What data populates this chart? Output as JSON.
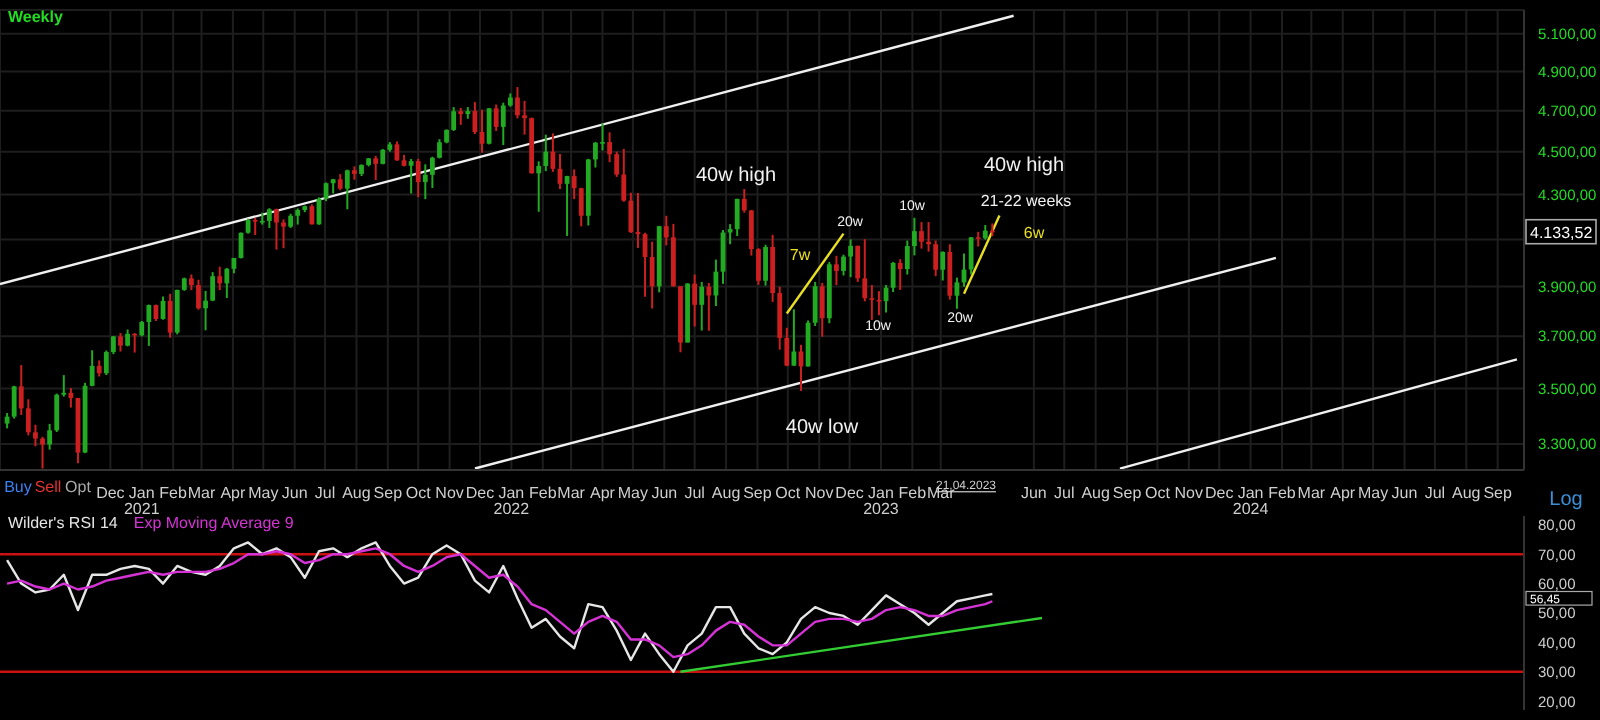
{
  "chart_data": [
    {
      "type": "candlestick",
      "title": "Weekly",
      "log": "y",
      "grid": true,
      "colors": [
        "#22aa22",
        "#22aa22",
        "#cc1f1f",
        "#cc1f1f",
        "#cc1f1f",
        "#cc1f1f",
        "#22aa22",
        "#22aa22",
        "#22aa22",
        "#cc1f1f",
        "#cc1f1f",
        "#22aa22",
        "#22aa22",
        "#cc1f1f",
        "#22aa22",
        "#22aa22",
        "#cc1f1f",
        "#22aa22",
        "#cc1f1f",
        "#22aa22",
        "#22aa22",
        "#cc1f1f",
        "#22aa22",
        "#cc1f1f",
        "#22aa22",
        "#22aa22",
        "#cc1f1f",
        "#cc1f1f",
        "#22aa22",
        "#22aa22",
        "#cc1f1f",
        "#22aa22",
        "#22aa22",
        "#22aa22",
        "#22aa22",
        "#cc1f1f",
        "#22aa22",
        "#22aa22",
        "#cc1f1f",
        "#cc1f1f",
        "#22aa22",
        "#22aa22",
        "#22aa22",
        "#cc1f1f",
        "#22aa22",
        "#22aa22",
        "#22aa22",
        "#cc1f1f",
        "#22aa22",
        "#cc1f1f",
        "#22aa22",
        "#22aa22",
        "#cc1f1f",
        "#22aa22",
        "#22aa22",
        "#cc1f1f",
        "#cc1f1f",
        "#22aa22",
        "#cc1f1f",
        "#22aa22",
        "#22aa22",
        "#22aa22",
        "#22aa22",
        "#22aa22",
        "#cc1f1f",
        "#22aa22",
        "#cc1f1f",
        "#cc1f1f",
        "#22aa22",
        "#cc1f1f",
        "#22aa22",
        "#22aa22",
        "#cc1f1f",
        "#cc1f1f",
        "#cc1f1f",
        "#22aa22",
        "#22aa22",
        "#cc1f1f",
        "#cc1f1f",
        "#22aa22",
        "#cc1f1f",
        "#cc1f1f",
        "#22aa22",
        "#22aa22",
        "#22aa22",
        "#cc1f1f",
        "#cc1f1f",
        "#cc1f1f",
        "#cc1f1f",
        "#cc1f1f",
        "#cc1f1f",
        "#cc1f1f",
        "#22aa22",
        "#cc1f1f",
        "#cc1f1f",
        "#cc1f1f",
        "#22aa22",
        "#cc1f1f",
        "#22aa22",
        "#cc1f1f",
        "#22aa22",
        "#22aa22",
        "#22aa22",
        "#22aa22",
        "#cc1f1f",
        "#cc1f1f",
        "#cc1f1f",
        "#22aa22",
        "#cc1f1f",
        "#cc1f1f",
        "#cc1f1f",
        "#22aa22",
        "#cc1f1f",
        "#22aa22",
        "#22aa22",
        "#cc1f1f",
        "#22aa22",
        "#cc1f1f",
        "#22aa22",
        "#22aa22",
        "#cc1f1f",
        "#cc1f1f",
        "#cc1f1f",
        "#cc1f1f",
        "#22aa22",
        "#22aa22",
        "#cc1f1f",
        "#22aa22",
        "#22aa22",
        "#cc1f1f",
        "#cc1f1f",
        "#cc1f1f",
        "#22aa22",
        "#cc1f1f",
        "#22aa22",
        "#22aa22",
        "#22aa22",
        "#cc1f1f",
        "#22aa22",
        "#cc1f1f"
      ],
      "xlim": [
        "2020-08-14",
        "2024-09-27"
      ],
      "ylim": [
        3210,
        5230
      ],
      "yticks": [
        {
          "value": 3300,
          "label": "3.300,00"
        },
        {
          "value": 3500,
          "label": "3.500,00"
        },
        {
          "value": 3700,
          "label": "3.700,00"
        },
        {
          "value": 3900,
          "label": "3.900,00"
        },
        {
          "value": 4100,
          "label": null
        },
        {
          "value": 4300,
          "label": "4.300,00"
        },
        {
          "value": 4500,
          "label": "4.500,00"
        },
        {
          "value": 4700,
          "label": "4.700,00"
        },
        {
          "value": 4900,
          "label": "4.900,00"
        },
        {
          "value": 5100,
          "label": "5.100,00"
        }
      ],
      "xticks": [
        {
          "value": "2020-12-01",
          "label": "Dec"
        },
        {
          "value": "2021-01-01",
          "label": "Jan\n2021"
        },
        {
          "value": "2021-02-01",
          "label": "Feb"
        },
        {
          "value": "2021-03-01",
          "label": "Mar"
        },
        {
          "value": "2021-04-01",
          "label": "Apr"
        },
        {
          "value": "2021-05-01",
          "label": "May"
        },
        {
          "value": "2021-06-01",
          "label": "Jun"
        },
        {
          "value": "2021-07-01",
          "label": "Jul"
        },
        {
          "value": "2021-08-01",
          "label": "Aug"
        },
        {
          "value": "2021-09-01",
          "label": "Sep"
        },
        {
          "value": "2021-10-01",
          "label": "Oct"
        },
        {
          "value": "2021-11-01",
          "label": "Nov"
        },
        {
          "value": "2021-12-01",
          "label": "Dec"
        },
        {
          "value": "2022-01-01",
          "label": "Jan\n2022"
        },
        {
          "value": "2022-02-01",
          "label": "Feb"
        },
        {
          "value": "2022-03-01",
          "label": "Mar"
        },
        {
          "value": "2022-04-01",
          "label": "Apr"
        },
        {
          "value": "2022-05-01",
          "label": "May"
        },
        {
          "value": "2022-06-01",
          "label": "Jun"
        },
        {
          "value": "2022-07-01",
          "label": "Jul"
        },
        {
          "value": "2022-08-01",
          "label": "Aug"
        },
        {
          "value": "2022-09-01",
          "label": "Sep"
        },
        {
          "value": "2022-10-01",
          "label": "Oct"
        },
        {
          "value": "2022-11-01",
          "label": "Nov"
        },
        {
          "value": "2022-12-01",
          "label": "Dec"
        },
        {
          "value": "2023-01-01",
          "label": "Jan\n2023"
        },
        {
          "value": "2023-02-01",
          "label": "Feb"
        },
        {
          "value": "2023-03-01",
          "label": "Mar"
        },
        {
          "value": "2023-06-01",
          "label": "Jun"
        },
        {
          "value": "2023-07-01",
          "label": "Jul"
        },
        {
          "value": "2023-08-01",
          "label": "Aug"
        },
        {
          "value": "2023-09-01",
          "label": "Sep"
        },
        {
          "value": "2023-10-01",
          "label": "Oct"
        },
        {
          "value": "2023-11-01",
          "label": "Nov"
        },
        {
          "value": "2023-12-01",
          "label": "Dec"
        },
        {
          "value": "2024-01-01",
          "label": "Jan\n2024"
        },
        {
          "value": "2024-02-01",
          "label": "Feb"
        },
        {
          "value": "2024-03-01",
          "label": "Mar"
        },
        {
          "value": "2024-04-01",
          "label": "Apr"
        },
        {
          "value": "2024-05-01",
          "label": "May"
        },
        {
          "value": "2024-06-01",
          "label": "Jun"
        },
        {
          "value": "2024-07-01",
          "label": "Jul"
        },
        {
          "value": "2024-08-01",
          "label": "Aug"
        },
        {
          "value": "2024-09-01",
          "label": "Sep"
        }
      ],
      "x": [
        "2020-08-21",
        "2020-08-28",
        "2020-09-04",
        "2020-09-11",
        "2020-09-18",
        "2020-09-25",
        "2020-10-02",
        "2020-10-09",
        "2020-10-16",
        "2020-10-23",
        "2020-10-30",
        "2020-11-06",
        "2020-11-13",
        "2020-11-20",
        "2020-11-27",
        "2020-12-04",
        "2020-12-11",
        "2020-12-18",
        "2020-12-25",
        "2021-01-01",
        "2021-01-08",
        "2021-01-15",
        "2021-01-22",
        "2021-01-29",
        "2021-02-05",
        "2021-02-12",
        "2021-02-19",
        "2021-02-26",
        "2021-03-05",
        "2021-03-12",
        "2021-03-19",
        "2021-03-26",
        "2021-04-02",
        "2021-04-09",
        "2021-04-16",
        "2021-04-23",
        "2021-04-30",
        "2021-05-07",
        "2021-05-14",
        "2021-05-21",
        "2021-05-28",
        "2021-06-04",
        "2021-06-11",
        "2021-06-18",
        "2021-06-25",
        "2021-07-02",
        "2021-07-09",
        "2021-07-16",
        "2021-07-23",
        "2021-07-30",
        "2021-08-06",
        "2021-08-13",
        "2021-08-20",
        "2021-08-27",
        "2021-09-03",
        "2021-09-10",
        "2021-09-17",
        "2021-09-24",
        "2021-10-01",
        "2021-10-08",
        "2021-10-15",
        "2021-10-22",
        "2021-10-29",
        "2021-11-05",
        "2021-11-12",
        "2021-11-19",
        "2021-11-26",
        "2021-12-03",
        "2021-12-10",
        "2021-12-17",
        "2021-12-24",
        "2021-12-31",
        "2022-01-07",
        "2022-01-14",
        "2022-01-21",
        "2022-01-28",
        "2022-02-04",
        "2022-02-11",
        "2022-02-18",
        "2022-02-25",
        "2022-03-04",
        "2022-03-11",
        "2022-03-18",
        "2022-03-25",
        "2022-04-01",
        "2022-04-08",
        "2022-04-15",
        "2022-04-22",
        "2022-04-29",
        "2022-05-06",
        "2022-05-13",
        "2022-05-20",
        "2022-05-27",
        "2022-06-03",
        "2022-06-10",
        "2022-06-17",
        "2022-06-24",
        "2022-07-01",
        "2022-07-08",
        "2022-07-15",
        "2022-07-22",
        "2022-07-29",
        "2022-08-05",
        "2022-08-12",
        "2022-08-19",
        "2022-08-26",
        "2022-09-02",
        "2022-09-09",
        "2022-09-16",
        "2022-09-23",
        "2022-09-30",
        "2022-10-07",
        "2022-10-14",
        "2022-10-21",
        "2022-10-28",
        "2022-11-04",
        "2022-11-11",
        "2022-11-18",
        "2022-11-25",
        "2022-12-02",
        "2022-12-09",
        "2022-12-16",
        "2022-12-23",
        "2022-12-30",
        "2023-01-06",
        "2023-01-13",
        "2023-01-20",
        "2023-01-27",
        "2023-02-03",
        "2023-02-10",
        "2023-02-17",
        "2023-02-24",
        "2023-03-03",
        "2023-03-10",
        "2023-03-17",
        "2023-03-24",
        "2023-03-31",
        "2023-04-07",
        "2023-04-14",
        "2023-04-21"
      ],
      "ohlc": [
        [
          3372,
          3410,
          3355,
          3397
        ],
        [
          3397,
          3510,
          3390,
          3508
        ],
        [
          3508,
          3588,
          3403,
          3427
        ],
        [
          3427,
          3460,
          3330,
          3341
        ],
        [
          3341,
          3368,
          3292,
          3319
        ],
        [
          3319,
          3325,
          3215,
          3298
        ],
        [
          3298,
          3371,
          3280,
          3348
        ],
        [
          3348,
          3481,
          3342,
          3477
        ],
        [
          3477,
          3550,
          3470,
          3484
        ],
        [
          3484,
          3502,
          3430,
          3465
        ],
        [
          3465,
          3465,
          3233,
          3270
        ],
        [
          3270,
          3521,
          3268,
          3510
        ],
        [
          3510,
          3645,
          3508,
          3585
        ],
        [
          3585,
          3606,
          3545,
          3557
        ],
        [
          3557,
          3644,
          3550,
          3638
        ],
        [
          3638,
          3700,
          3630,
          3699
        ],
        [
          3699,
          3712,
          3640,
          3663
        ],
        [
          3663,
          3726,
          3660,
          3709
        ],
        [
          3709,
          3712,
          3636,
          3703
        ],
        [
          3703,
          3760,
          3699,
          3756
        ],
        [
          3756,
          3826,
          3662,
          3824
        ],
        [
          3824,
          3826,
          3760,
          3768
        ],
        [
          3768,
          3859,
          3765,
          3841
        ],
        [
          3841,
          3870,
          3694,
          3714
        ],
        [
          3714,
          3887,
          3707,
          3886
        ],
        [
          3886,
          3937,
          3882,
          3934
        ],
        [
          3934,
          3950,
          3885,
          3906
        ],
        [
          3906,
          3928,
          3805,
          3811
        ],
        [
          3811,
          3882,
          3723,
          3842
        ],
        [
          3842,
          3960,
          3840,
          3943
        ],
        [
          3943,
          3983,
          3885,
          3913
        ],
        [
          3913,
          3978,
          3853,
          3974
        ],
        [
          3974,
          4020,
          3955,
          4020
        ],
        [
          4020,
          4130,
          4018,
          4129
        ],
        [
          4129,
          4191,
          4125,
          4185
        ],
        [
          4185,
          4195,
          4119,
          4180
        ],
        [
          4180,
          4218,
          4165,
          4181
        ],
        [
          4181,
          4238,
          4150,
          4233
        ],
        [
          4233,
          4236,
          4056,
          4174
        ],
        [
          4174,
          4188,
          4062,
          4156
        ],
        [
          4156,
          4213,
          4150,
          4204
        ],
        [
          4204,
          4237,
          4165,
          4230
        ],
        [
          4230,
          4250,
          4220,
          4247
        ],
        [
          4247,
          4255,
          4165,
          4166
        ],
        [
          4166,
          4287,
          4164,
          4281
        ],
        [
          4281,
          4355,
          4270,
          4352
        ],
        [
          4352,
          4372,
          4305,
          4370
        ],
        [
          4370,
          4394,
          4320,
          4327
        ],
        [
          4327,
          4415,
          4233,
          4412
        ],
        [
          4412,
          4430,
          4368,
          4395
        ],
        [
          4395,
          4440,
          4385,
          4437
        ],
        [
          4437,
          4470,
          4430,
          4468
        ],
        [
          4468,
          4480,
          4367,
          4442
        ],
        [
          4442,
          4513,
          4440,
          4509
        ],
        [
          4509,
          4546,
          4500,
          4535
        ],
        [
          4535,
          4549,
          4456,
          4459
        ],
        [
          4459,
          4485,
          4430,
          4433
        ],
        [
          4433,
          4465,
          4305,
          4455
        ],
        [
          4455,
          4466,
          4288,
          4357
        ],
        [
          4357,
          4440,
          4279,
          4391
        ],
        [
          4391,
          4476,
          4330,
          4471
        ],
        [
          4471,
          4560,
          4468,
          4545
        ],
        [
          4545,
          4608,
          4540,
          4605
        ],
        [
          4605,
          4718,
          4600,
          4697
        ],
        [
          4697,
          4714,
          4630,
          4683
        ],
        [
          4683,
          4718,
          4660,
          4698
        ],
        [
          4698,
          4743,
          4585,
          4595
        ],
        [
          4595,
          4705,
          4495,
          4538
        ],
        [
          4538,
          4713,
          4535,
          4712
        ],
        [
          4712,
          4731,
          4600,
          4620
        ],
        [
          4620,
          4740,
          4532,
          4726
        ],
        [
          4726,
          4787,
          4720,
          4766
        ],
        [
          4766,
          4819,
          4662,
          4677
        ],
        [
          4677,
          4749,
          4582,
          4663
        ],
        [
          4663,
          4666,
          4396,
          4398
        ],
        [
          4398,
          4454,
          4222,
          4432
        ],
        [
          4432,
          4582,
          4408,
          4500
        ],
        [
          4500,
          4588,
          4405,
          4419
        ],
        [
          4419,
          4489,
          4325,
          4349
        ],
        [
          4349,
          4386,
          4115,
          4385
        ],
        [
          4385,
          4416,
          4279,
          4329
        ],
        [
          4329,
          4331,
          4157,
          4204
        ],
        [
          4204,
          4466,
          4161,
          4463
        ],
        [
          4463,
          4546,
          4425,
          4543
        ],
        [
          4543,
          4637,
          4506,
          4546
        ],
        [
          4546,
          4593,
          4450,
          4488
        ],
        [
          4488,
          4500,
          4381,
          4392
        ],
        [
          4392,
          4513,
          4267,
          4272
        ],
        [
          4272,
          4308,
          4128,
          4132
        ],
        [
          4132,
          4307,
          4063,
          4123
        ],
        [
          4123,
          4129,
          3858,
          4024
        ],
        [
          4024,
          4090,
          3810,
          3901
        ],
        [
          3901,
          4159,
          3876,
          4158
        ],
        [
          4158,
          4204,
          4074,
          4109
        ],
        [
          4109,
          4168,
          3900,
          3901
        ],
        [
          3901,
          3901,
          3637,
          3675
        ],
        [
          3675,
          3914,
          3675,
          3912
        ],
        [
          3912,
          3950,
          3738,
          3825
        ],
        [
          3825,
          3919,
          3722,
          3899
        ],
        [
          3899,
          3915,
          3721,
          3863
        ],
        [
          3863,
          4013,
          3820,
          3962
        ],
        [
          3962,
          4141,
          3911,
          4130
        ],
        [
          4130,
          4167,
          4079,
          4145
        ],
        [
          4145,
          4281,
          4115,
          4280
        ],
        [
          4280,
          4325,
          4218,
          4228
        ],
        [
          4228,
          4230,
          4030,
          4058
        ],
        [
          4058,
          4062,
          3907,
          3924
        ],
        [
          3924,
          4077,
          3904,
          4067
        ],
        [
          4067,
          4120,
          3837,
          3873
        ],
        [
          3873,
          3899,
          3647,
          3693
        ],
        [
          3693,
          3733,
          3584,
          3586
        ],
        [
          3586,
          3807,
          3585,
          3640
        ],
        [
          3640,
          3666,
          3491,
          3583
        ],
        [
          3583,
          3762,
          3582,
          3753
        ],
        [
          3753,
          3919,
          3740,
          3901
        ],
        [
          3901,
          3915,
          3698,
          3771
        ],
        [
          3771,
          4003,
          3751,
          3993
        ],
        [
          3993,
          4029,
          3906,
          3965
        ],
        [
          3965,
          4034,
          3946,
          4026
        ],
        [
          4026,
          4100,
          3939,
          4072
        ],
        [
          4072,
          4073,
          3919,
          3934
        ],
        [
          3934,
          4101,
          3839,
          3852
        ],
        [
          3852,
          3906,
          3764,
          3845
        ],
        [
          3845,
          3881,
          3783,
          3840
        ],
        [
          3840,
          3906,
          3794,
          3895
        ],
        [
          3895,
          4003,
          3877,
          3999
        ],
        [
          3999,
          4015,
          3886,
          3973
        ],
        [
          3973,
          4095,
          3950,
          4071
        ],
        [
          4071,
          4195,
          4031,
          4136
        ],
        [
          4136,
          4176,
          4060,
          4090
        ],
        [
          4090,
          4176,
          4047,
          4079
        ],
        [
          4079,
          4095,
          3943,
          3970
        ],
        [
          3970,
          4048,
          3925,
          4046
        ],
        [
          4046,
          4079,
          3846,
          3862
        ],
        [
          3862,
          3937,
          3809,
          3917
        ],
        [
          3917,
          4039,
          3899,
          3971
        ],
        [
          3971,
          4110,
          3950,
          4109
        ],
        [
          4109,
          4133,
          4069,
          4105
        ],
        [
          4105,
          4163,
          4099,
          4138
        ],
        [
          4138,
          4170,
          4114,
          4133
        ]
      ],
      "series": [
        {
          "type": "line",
          "color": "#f0f0f0",
          "x": [
            "2020-08-14",
            "2023-05-12"
          ],
          "values": [
            3910,
            5198
          ]
        },
        {
          "type": "line",
          "color": "#f0f0f0",
          "x": [
            "2021-11-26",
            "2024-01-26"
          ],
          "values": [
            3215,
            4020
          ]
        },
        {
          "type": "line",
          "color": "#f0f0f0",
          "x": [
            "2023-08-25",
            "2024-09-20"
          ],
          "values": [
            3215,
            3610
          ]
        },
        {
          "type": "line",
          "color": "#e8e020",
          "x": [
            "2022-09-30",
            "2022-11-25"
          ],
          "values": [
            3790,
            4125
          ]
        },
        {
          "type": "line",
          "color": "#e8e020",
          "x": [
            "2023-03-24",
            "2023-04-28"
          ],
          "values": [
            3870,
            4205
          ]
        }
      ],
      "annotations": [
        "40w high",
        "40w high",
        "21-22 weeks",
        "6w",
        "7w",
        "20w",
        "10w",
        "10w",
        "20w",
        "40w low",
        {
          "text": "4.133,52",
          "y": 4133.52
        },
        "21.04.2023",
        "Buy",
        "Sell",
        "Opt",
        "Log"
      ]
    },
    {
      "type": "line",
      "tick_labels": "y",
      "legend": "top left",
      "xlim": [
        "2020-08-14",
        "2024-09-27"
      ],
      "ylim": [
        17,
        83
      ],
      "yticks": [
        {
          "value": 20,
          "label": "20,00"
        },
        {
          "value": 30,
          "label": "30,00"
        },
        {
          "value": 40,
          "label": "40,00"
        },
        {
          "value": 50,
          "label": "50,00"
        },
        {
          "value": 60,
          "label": "60,00"
        },
        {
          "value": 70,
          "label": "70,00"
        },
        {
          "value": 80,
          "label": "80,00"
        }
      ],
      "x": [
        "2020-08-21",
        "2020-09-04",
        "2020-09-18",
        "2020-10-02",
        "2020-10-16",
        "2020-10-30",
        "2020-11-13",
        "2020-11-27",
        "2020-12-11",
        "2020-12-25",
        "2021-01-08",
        "2021-01-22",
        "2021-02-05",
        "2021-02-19",
        "2021-03-05",
        "2021-03-19",
        "2021-04-02",
        "2021-04-16",
        "2021-04-30",
        "2021-05-14",
        "2021-05-28",
        "2021-06-11",
        "2021-06-25",
        "2021-07-09",
        "2021-07-23",
        "2021-08-06",
        "2021-08-20",
        "2021-09-03",
        "2021-09-17",
        "2021-10-01",
        "2021-10-15",
        "2021-10-29",
        "2021-11-12",
        "2021-11-26",
        "2021-12-10",
        "2021-12-24",
        "2022-01-07",
        "2022-01-21",
        "2022-02-04",
        "2022-02-18",
        "2022-03-04",
        "2022-03-18",
        "2022-04-01",
        "2022-04-15",
        "2022-04-29",
        "2022-05-13",
        "2022-05-27",
        "2022-06-10",
        "2022-06-24",
        "2022-07-08",
        "2022-07-22",
        "2022-08-05",
        "2022-08-19",
        "2022-09-02",
        "2022-09-16",
        "2022-09-30",
        "2022-10-14",
        "2022-10-28",
        "2022-11-11",
        "2022-11-25",
        "2022-12-09",
        "2022-12-23",
        "2023-01-06",
        "2023-01-20",
        "2023-02-03",
        "2023-02-17",
        "2023-03-03",
        "2023-03-17",
        "2023-03-31",
        "2023-04-14",
        "2023-04-21"
      ],
      "series": [
        {
          "name": "Wilder's RSI 14",
          "color": "#e6e6e6",
          "values": [
            68,
            60,
            57,
            58,
            63,
            51,
            63,
            63,
            65,
            66,
            65,
            60,
            66,
            64,
            63,
            66,
            72,
            74,
            70,
            72,
            69,
            62,
            71,
            72,
            69,
            72,
            74,
            66,
            60,
            62,
            70,
            73,
            70,
            61,
            57,
            66,
            55,
            45,
            48,
            42,
            38,
            53,
            52,
            44,
            34,
            43,
            36,
            30,
            39,
            43,
            52,
            52,
            43,
            38,
            36,
            40,
            48,
            52,
            50,
            49,
            46,
            51,
            56,
            53,
            50,
            46,
            50,
            54,
            55,
            56,
            56.45
          ]
        },
        {
          "name": "Exp Moving Average 9",
          "color": "#d633d6",
          "values": [
            60,
            61,
            59,
            58,
            60,
            58,
            59,
            61,
            62,
            63,
            64,
            63,
            64,
            64,
            64,
            65,
            67,
            70,
            70,
            71,
            70,
            67,
            68,
            70,
            70,
            71,
            72,
            70,
            66,
            64,
            66,
            69,
            70,
            66,
            62,
            63,
            59,
            53,
            51,
            47,
            43,
            47,
            49,
            47,
            41,
            41,
            39,
            35,
            36,
            39,
            44,
            47,
            46,
            42,
            39,
            39,
            43,
            47,
            48,
            48,
            47,
            48,
            51,
            52,
            51,
            49,
            49,
            51,
            52,
            53,
            54
          ]
        },
        {
          "type": "line",
          "color": "#33cc33",
          "x": [
            "2022-06-17",
            "2023-06-09"
          ],
          "values": [
            30,
            48.3
          ]
        }
      ],
      "ref_lines": [
        {
          "axis": "y",
          "value": 70,
          "color": "#cc1111"
        },
        {
          "axis": "y",
          "value": 30,
          "color": "#cc1111"
        }
      ],
      "annotations": [
        "56,45"
      ]
    }
  ]
}
